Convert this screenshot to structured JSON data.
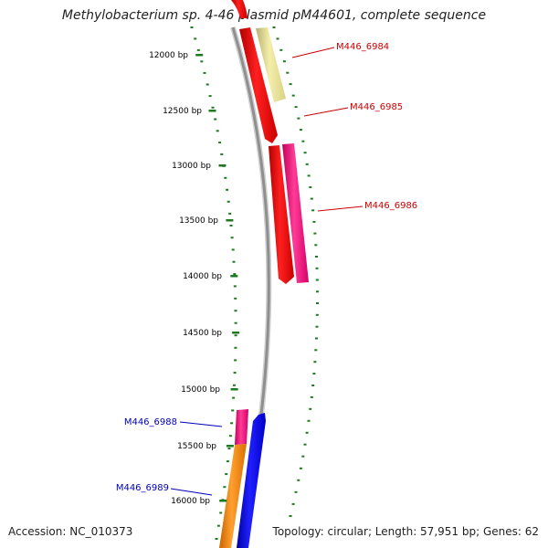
{
  "title": "Methylobacterium sp. 4-46 plasmid pM44601, complete sequence",
  "accession": "Accession: NC_010373",
  "stats": "Topology: circular; Length: 57,951 bp; Genes: 62",
  "colors": {
    "backbone": "#8f8f8f",
    "tick": "#1e7a1e",
    "forward_label": "#cc0000",
    "reverse_label": "#0000bb",
    "red": "#ff0000",
    "khaki": "#eee89a",
    "pink": "#ff2a8c",
    "blue": "#0000ff",
    "orange": "#ff8c00"
  },
  "position_labels": [
    "12000 bp",
    "12500 bp",
    "13000 bp",
    "13500 bp",
    "14000 bp",
    "14500 bp",
    "15000 bp",
    "15500 bp",
    "16000 bp"
  ],
  "gene_labels": [
    {
      "text": "M446_6984",
      "strand": "forward"
    },
    {
      "text": "M446_6985",
      "strand": "forward"
    },
    {
      "text": "M446_6986",
      "strand": "forward"
    },
    {
      "text": "M446_6988",
      "strand": "reverse"
    },
    {
      "text": "M446_6989",
      "strand": "reverse"
    }
  ]
}
